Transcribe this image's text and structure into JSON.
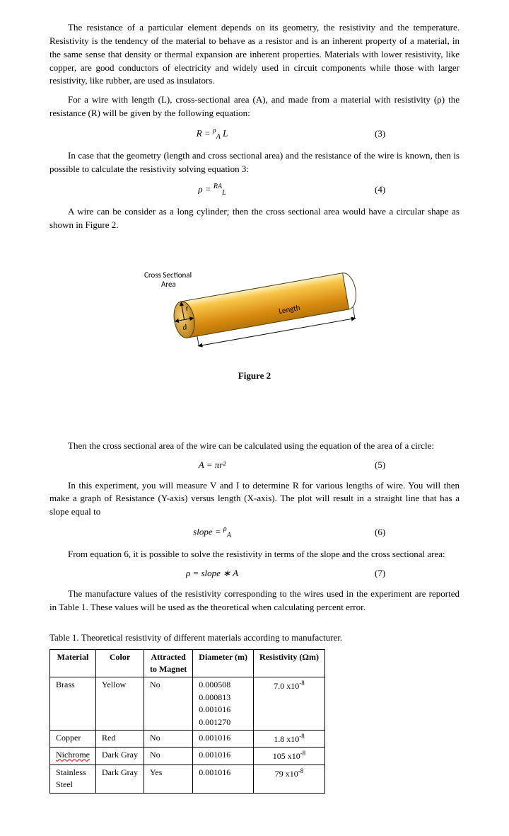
{
  "paragraphs": {
    "p1": "The resistance of a particular element depends on its geometry, the resistivity and the temperature. Resistivity is the tendency of the material to behave as a resistor and is an inherent property of a material, in the same sense that density or thermal expansion are inherent properties. Materials with lower resistivity, like copper, are good conductors of electricity and widely used in circuit components while those with larger resistivity, like rubber, are used as insulators.",
    "p2": "For a wire with length (L), cross-sectional area (A), and made from a material with resistivity (ρ) the resistance (R) will be given by the following equation:",
    "p3": "In case that the geometry (length and cross sectional area) and the resistance of the wire is known, then is possible to calculate the resistivity solving equation 3:",
    "p4": "A wire can be consider as a long cylinder; then the cross sectional area would have a circular shape as shown in Figure 2.",
    "p5": "Then the cross sectional area of the wire can be calculated using the equation of the area of a circle:",
    "p6": "In this experiment, you will measure V and I to determine R for various lengths of wire. You will then make a graph of Resistance (Y-axis) versus length (X-axis). The plot will result in a straight line that has a slope equal to",
    "p7": "From equation 6, it is possible to solve the resistivity in terms of the slope and the cross sectional area:",
    "p8": "The manufacture values of the resistivity corresponding to the wires used in the experiment are reported in Table 1. These values will be used as the theoretical when calculating percent error."
  },
  "equations": {
    "eq3": {
      "lhs": "R =",
      "top": "ρ",
      "bottom": "A",
      "extra": "L",
      "num": "(3)"
    },
    "eq4": {
      "lhs": "ρ =",
      "top": "RA",
      "bottom": "L",
      "num": "(4)"
    },
    "eq5": {
      "expr": "A = πr²",
      "num": "(5)"
    },
    "eq6": {
      "lhs": "slope =",
      "top": "ρ",
      "bottom": "A",
      "num": "(6)"
    },
    "eq7": {
      "expr": "ρ = slope ∗ A",
      "num": "(7)"
    }
  },
  "figure": {
    "caption": "Figure 2",
    "label_cs1": "Cross Sectional",
    "label_cs2": "Area",
    "label_len": "Length",
    "label_r": "r",
    "label_d": "d",
    "colors": {
      "body_top": "#f7c64a",
      "body_bot": "#d88a0e",
      "cap_dark": "#b6760a",
      "cap_light": "#e6a83a",
      "outline": "#4a3b0c"
    }
  },
  "table": {
    "caption": "Table 1. Theoretical resistivity of different materials according to manufacturer.",
    "headers": [
      "Material",
      "Color",
      "Attracted to Magnet",
      "Diameter (m)",
      "Resistivity (Ωm)"
    ],
    "rows": [
      {
        "material": "Brass",
        "color": "Yellow",
        "magnet": "No",
        "diameters": [
          "0.000508",
          "0.000813",
          "0.001016",
          "0.001270"
        ],
        "resistivity": "7.0 x10⁻⁸"
      },
      {
        "material": "Copper",
        "color": "Red",
        "magnet": "No",
        "diameters": [
          "0.001016"
        ],
        "resistivity": "1.8 x10⁻⁸"
      },
      {
        "material": "Nichrome",
        "color": "Dark Gray",
        "magnet": "No",
        "diameters": [
          "0.001016"
        ],
        "resistivity": "105 x10⁻⁸"
      },
      {
        "material": "Stainless Steel",
        "color": "Dark Gray",
        "magnet": "Yes",
        "diameters": [
          "0.001016"
        ],
        "resistivity": "79 x10⁻⁸"
      }
    ]
  }
}
